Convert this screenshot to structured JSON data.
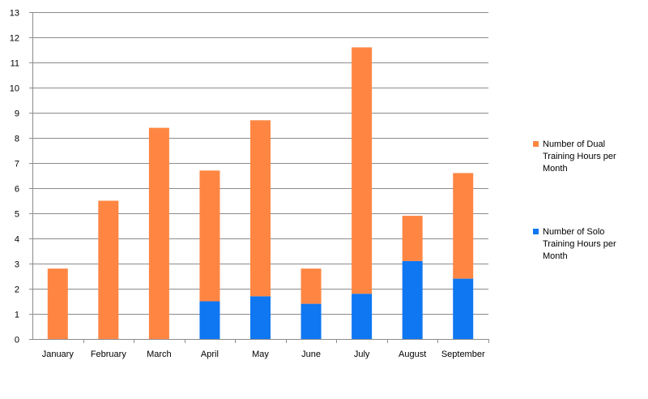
{
  "chart_data": {
    "type": "bar",
    "stacked": true,
    "categories": [
      "January",
      "February",
      "March",
      "April",
      "May",
      "June",
      "July",
      "August",
      "September"
    ],
    "series": [
      {
        "name": "Number of Solo Training Hours per Month",
        "color": "#0F77F2",
        "values": [
          0,
          0,
          0,
          1.5,
          1.7,
          1.4,
          1.8,
          3.1,
          2.4
        ]
      },
      {
        "name": "Number of Dual Training Hours per Month",
        "color": "#FF8642",
        "values": [
          2.8,
          5.5,
          8.4,
          5.2,
          7.0,
          1.4,
          9.8,
          1.8,
          4.2
        ]
      }
    ],
    "ylim": [
      0,
      13
    ],
    "yticks": [
      "0",
      "1",
      "2",
      "3",
      "4",
      "5",
      "6",
      "7",
      "8",
      "9",
      "10",
      "11",
      "12",
      "13"
    ],
    "grid": true,
    "legend_position": "right"
  }
}
